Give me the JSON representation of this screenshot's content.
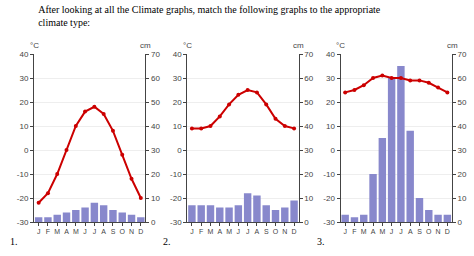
{
  "chart_data": [
    {
      "type": "combo",
      "title": "After looking at all the Climate graphs, match the following graphs to the appropriate\nclimate type:",
      "ylabel": "°C",
      "y2label": "cm",
      "annotations": [
        "1."
      ],
      "categories": [
        "J",
        "F",
        "M",
        "A",
        "M",
        "J",
        "J",
        "A",
        "S",
        "O",
        "N",
        "D"
      ],
      "series": [
        {
          "type": "bar",
          "axis": "y2",
          "color": "#8888cc",
          "values": [
            2,
            2,
            3,
            4,
            5,
            6,
            8,
            7,
            5,
            4,
            3,
            2
          ]
        },
        {
          "type": "line",
          "color": "#cc0000",
          "marker": "circle",
          "line_style": "solid",
          "values": [
            -22,
            -18,
            -10,
            0,
            10,
            16,
            18,
            15,
            8,
            -2,
            -12,
            -20
          ]
        }
      ],
      "ylim": [
        -30,
        40
      ],
      "yticks": [
        -30,
        -20,
        -10,
        0,
        10,
        20,
        30,
        40
      ],
      "y2lim": [
        0,
        70
      ],
      "y2ticks": [
        0,
        10,
        20,
        30,
        40,
        50,
        60,
        70
      ],
      "grid": true
    },
    {
      "type": "combo",
      "ylabel": "°C",
      "y2label": "cm",
      "annotations": [
        "2."
      ],
      "categories": [
        "J",
        "F",
        "M",
        "A",
        "M",
        "J",
        "J",
        "A",
        "S",
        "O",
        "N",
        "D"
      ],
      "series": [
        {
          "type": "bar",
          "axis": "y2",
          "color": "#8888cc",
          "values": [
            7,
            7,
            7,
            6,
            6,
            7,
            12,
            11,
            7,
            5,
            6,
            9
          ]
        },
        {
          "type": "line",
          "color": "#cc0000",
          "marker": "circle",
          "line_style": "solid",
          "values": [
            9,
            9,
            10,
            14,
            19,
            23,
            25,
            24,
            19,
            13,
            10,
            9
          ]
        }
      ],
      "ylim": [
        -30,
        40
      ],
      "yticks": [
        -30,
        -20,
        -10,
        0,
        10,
        20,
        30,
        40
      ],
      "y2lim": [
        0,
        70
      ],
      "y2ticks": [
        0,
        10,
        20,
        30,
        40,
        50,
        60,
        70
      ],
      "grid": true
    },
    {
      "type": "combo",
      "ylabel": "°C",
      "y2label": "cm",
      "annotations": [
        "3."
      ],
      "categories": [
        "J",
        "F",
        "M",
        "A",
        "M",
        "J",
        "J",
        "A",
        "S",
        "O",
        "N",
        "D"
      ],
      "series": [
        {
          "type": "bar",
          "axis": "y2",
          "color": "#8888cc",
          "values": [
            3,
            2,
            3,
            20,
            35,
            60,
            65,
            38,
            10,
            5,
            3,
            3
          ]
        },
        {
          "type": "line",
          "color": "#cc0000",
          "marker": "circle",
          "line_style": "solid",
          "values": [
            24,
            25,
            27,
            30,
            31,
            30,
            30,
            29,
            29,
            28,
            26,
            24
          ]
        }
      ],
      "ylim": [
        -30,
        40
      ],
      "yticks": [
        -30,
        -20,
        -10,
        0,
        10,
        20,
        30,
        40
      ],
      "y2lim": [
        0,
        70
      ],
      "y2ticks": [
        0,
        10,
        20,
        30,
        40,
        50,
        60,
        70
      ],
      "grid": true
    }
  ]
}
